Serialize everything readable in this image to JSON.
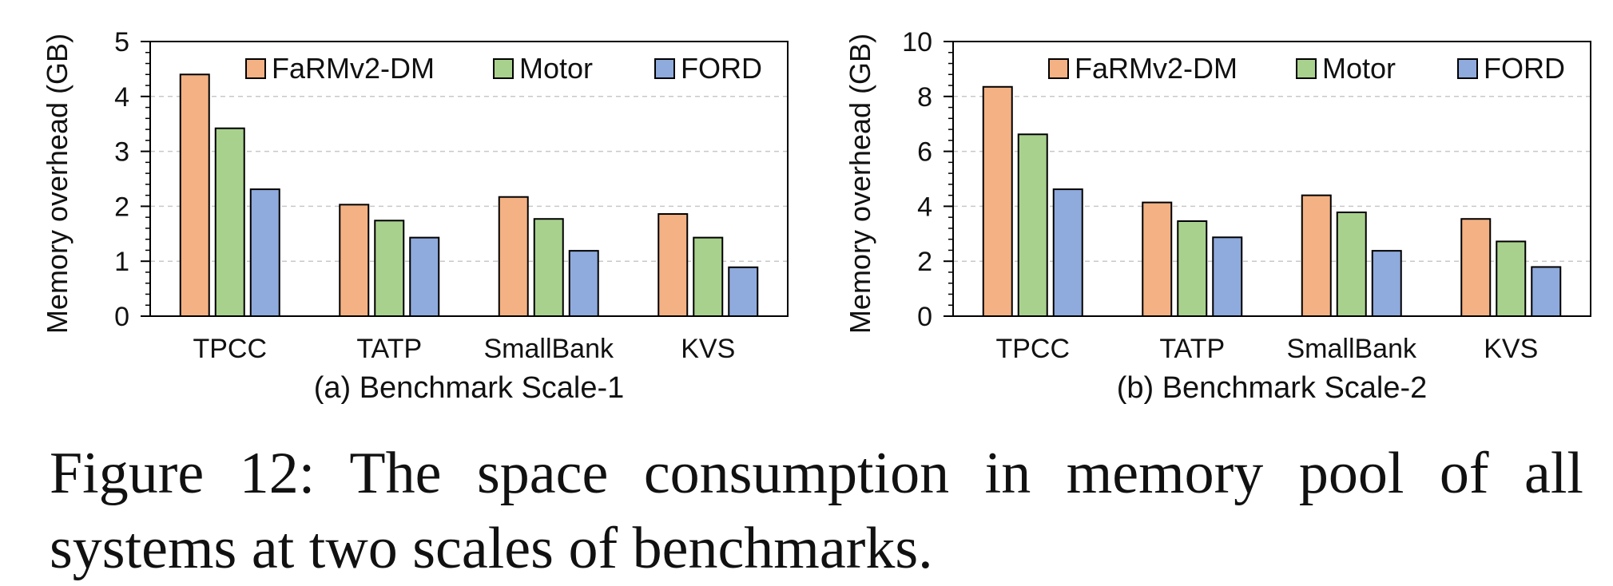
{
  "chart_data": [
    {
      "type": "bar",
      "subcaption": "(a) Benchmark Scale-1",
      "ylabel": "Memory overhead (GB)",
      "ylim": [
        0,
        5
      ],
      "yticks": [
        0,
        1,
        2,
        3,
        4,
        5
      ],
      "grid": "horizontal dashed",
      "legend_position": "top",
      "categories": [
        "TPCC",
        "TATP",
        "SmallBank",
        "KVS"
      ],
      "series": [
        {
          "name": "FaRMv2-DM",
          "color": "#f4b183",
          "values": [
            4.4,
            2.03,
            2.17,
            1.86
          ]
        },
        {
          "name": "Motor",
          "color": "#a9d18e",
          "values": [
            3.42,
            1.74,
            1.77,
            1.43
          ]
        },
        {
          "name": "FORD",
          "color": "#8faadc",
          "values": [
            2.31,
            1.43,
            1.19,
            0.89
          ]
        }
      ]
    },
    {
      "type": "bar",
      "subcaption": "(b) Benchmark Scale-2",
      "ylabel": "Memory overhead (GB)",
      "ylim": [
        0,
        10
      ],
      "yticks": [
        0,
        2,
        4,
        6,
        8,
        10
      ],
      "grid": "horizontal dashed",
      "legend_position": "top",
      "categories": [
        "TPCC",
        "TATP",
        "SmallBank",
        "KVS"
      ],
      "series": [
        {
          "name": "FaRMv2-DM",
          "color": "#f4b183",
          "values": [
            8.35,
            4.14,
            4.4,
            3.54
          ]
        },
        {
          "name": "Motor",
          "color": "#a9d18e",
          "values": [
            6.62,
            3.46,
            3.78,
            2.72
          ]
        },
        {
          "name": "FORD",
          "color": "#8faadc",
          "values": [
            4.62,
            2.87,
            2.38,
            1.79
          ]
        }
      ]
    }
  ],
  "caption": "Figure 12: The space consumption in memory pool of all systems at two scales of benchmarks."
}
